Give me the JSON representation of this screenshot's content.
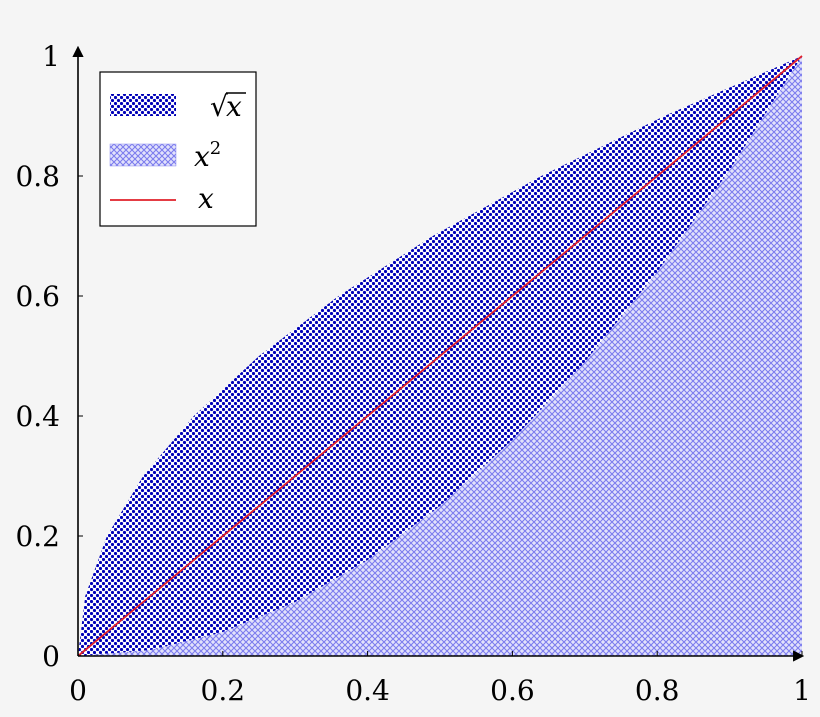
{
  "chart_data": {
    "type": "area",
    "title": "",
    "xlabel": "",
    "ylabel": "",
    "xlim": [
      0,
      1
    ],
    "ylim": [
      0,
      1
    ],
    "grid": false,
    "legend_position": "top-left",
    "x_ticks": [
      "0",
      "0.2",
      "0.4",
      "0.6",
      "0.8",
      "1"
    ],
    "y_ticks": [
      "0",
      "0.2",
      "0.4",
      "0.6",
      "0.8",
      "1"
    ],
    "series": [
      {
        "name": "√x",
        "kind": "area",
        "fill_pattern": "dots",
        "color": "#0000b8",
        "x": [
          0,
          0.01,
          0.04,
          0.09,
          0.16,
          0.25,
          0.36,
          0.49,
          0.64,
          0.81,
          1
        ],
        "y": [
          0,
          0.1,
          0.2,
          0.3,
          0.4,
          0.5,
          0.6,
          0.7,
          0.8,
          0.9,
          1
        ]
      },
      {
        "name": "x²",
        "name_base": "x",
        "name_sup": "2",
        "kind": "area",
        "fill_pattern": "crosshatch",
        "color": "#8c8cf0",
        "x": [
          0,
          0.1,
          0.2,
          0.3,
          0.4,
          0.5,
          0.6,
          0.7,
          0.8,
          0.9,
          1
        ],
        "y": [
          0,
          0.01,
          0.04,
          0.09,
          0.16,
          0.25,
          0.36,
          0.49,
          0.64,
          0.81,
          1
        ]
      },
      {
        "name": "x",
        "kind": "line",
        "color": "#e0202a",
        "x": [
          0,
          1
        ],
        "y": [
          0,
          1
        ]
      }
    ]
  }
}
